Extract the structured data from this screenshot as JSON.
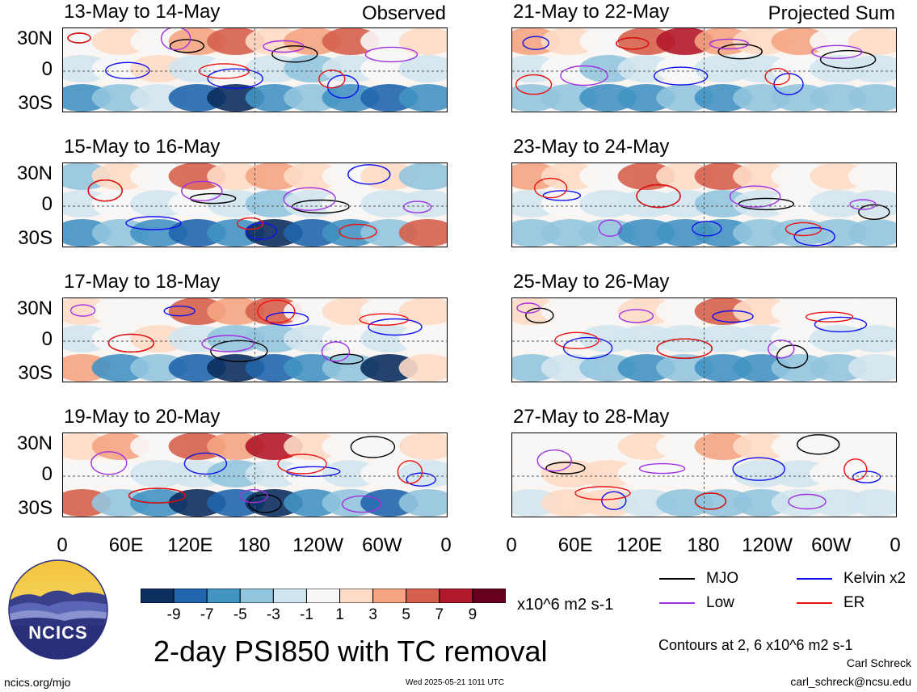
{
  "chart_data": {
    "type": "heatmap",
    "title": "2-day PSI850 with TC removal",
    "variable": "PSI850",
    "units": "x10^6 m2 s-1",
    "xlim": [
      0,
      360
    ],
    "ylim": [
      -40,
      40
    ],
    "x_ticks": [
      "0",
      "60E",
      "120E",
      "180",
      "120W",
      "60W",
      "0"
    ],
    "y_ticks": [
      "30N",
      "0",
      "30S"
    ],
    "colorbar": {
      "labels": [
        "-9",
        "-7",
        "-5",
        "-3",
        "-1",
        "1",
        "3",
        "5",
        "7",
        "9"
      ],
      "colors": [
        "#0b2f5e",
        "#2166ac",
        "#4393c3",
        "#92c5de",
        "#d1e5f0",
        "#f7f7f7",
        "#fddbc7",
        "#f4a582",
        "#d6604d",
        "#b2182b",
        "#67001f"
      ]
    },
    "contour_levels_note": "Contours at 2, 6 x10^6 m2 s-1",
    "contour_legend": [
      {
        "name": "MJO",
        "color": "#000000"
      },
      {
        "name": "Kelvin x2",
        "color": "#1010ee"
      },
      {
        "name": "Low",
        "color": "#a030e0"
      },
      {
        "name": "ER",
        "color": "#ee1010"
      }
    ],
    "panels": [
      {
        "title": "13-May to 14-May",
        "corner": "Observed",
        "anomaly_pattern": [
          [
            1,
            3,
            1,
            5,
            7,
            3,
            5,
            7,
            1,
            3
          ],
          [
            -1,
            1,
            3,
            -1,
            1,
            -1,
            -3,
            -1,
            1,
            -1
          ],
          [
            -5,
            -3,
            -1,
            -7,
            -9,
            -5,
            -3,
            -5,
            -7,
            -5
          ]
        ]
      },
      {
        "title": "15-May to 16-May",
        "corner": "",
        "anomaly_pattern": [
          [
            -3,
            3,
            1,
            7,
            3,
            5,
            3,
            1,
            3,
            -3
          ],
          [
            -1,
            1,
            -1,
            1,
            -1,
            -3,
            -1,
            1,
            -1,
            -1
          ],
          [
            -5,
            -3,
            -5,
            -7,
            -5,
            -9,
            -7,
            -5,
            -3,
            7
          ]
        ]
      },
      {
        "title": "17-May to 18-May",
        "corner": "",
        "anomaly_pattern": [
          [
            3,
            1,
            1,
            7,
            5,
            7,
            1,
            3,
            1,
            3
          ],
          [
            -1,
            1,
            3,
            -1,
            -3,
            -3,
            -1,
            1,
            -1,
            1
          ],
          [
            5,
            -5,
            -3,
            -7,
            -9,
            -7,
            -5,
            -3,
            -9,
            3
          ]
        ]
      },
      {
        "title": "19-May to 20-May",
        "corner": "",
        "anomaly_pattern": [
          [
            3,
            5,
            1,
            7,
            5,
            9,
            3,
            1,
            1,
            3
          ],
          [
            1,
            1,
            -1,
            -1,
            -3,
            -1,
            1,
            -1,
            1,
            -1
          ],
          [
            7,
            -3,
            -5,
            -9,
            -7,
            -9,
            -5,
            -3,
            -7,
            -3
          ]
        ]
      },
      {
        "title": "21-May to 22-May",
        "corner": "Projected Sum",
        "anomaly_pattern": [
          [
            5,
            3,
            1,
            7,
            9,
            5,
            3,
            5,
            1,
            3
          ],
          [
            -1,
            1,
            -3,
            -1,
            1,
            -1,
            -1,
            1,
            -1,
            -1
          ],
          [
            -3,
            -3,
            -5,
            -5,
            -3,
            -5,
            -3,
            -3,
            -3,
            -3
          ]
        ]
      },
      {
        "title": "23-May to 24-May",
        "corner": "",
        "anomaly_pattern": [
          [
            5,
            3,
            1,
            7,
            3,
            7,
            3,
            1,
            3,
            1
          ],
          [
            -1,
            1,
            -1,
            -1,
            -1,
            -3,
            -1,
            1,
            -1,
            -1
          ],
          [
            -3,
            -3,
            -3,
            -5,
            -5,
            -5,
            -3,
            -3,
            -3,
            -3
          ]
        ]
      },
      {
        "title": "25-May to 26-May",
        "corner": "",
        "anomaly_pattern": [
          [
            3,
            1,
            1,
            3,
            1,
            7,
            3,
            1,
            1,
            1
          ],
          [
            1,
            1,
            -1,
            -1,
            -1,
            -1,
            -1,
            1,
            -1,
            -1
          ],
          [
            -3,
            -1,
            -3,
            -5,
            -3,
            -5,
            -5,
            -3,
            -3,
            -1
          ]
        ]
      },
      {
        "title": "27-May to 28-May",
        "corner": "",
        "anomaly_pattern": [
          [
            1,
            1,
            1,
            3,
            1,
            5,
            3,
            1,
            1,
            1
          ],
          [
            1,
            3,
            3,
            1,
            1,
            1,
            -1,
            -1,
            1,
            1
          ],
          [
            -1,
            3,
            3,
            -1,
            -3,
            -3,
            -3,
            -1,
            -1,
            -1
          ]
        ]
      }
    ]
  },
  "branding": {
    "logo_text": "NCICS",
    "site": "ncics.org/mjo",
    "timestamp": "Wed 2025-05-21 1011 UTC",
    "author": "Carl Schreck",
    "email": "carl_schreck@ncsu.edu"
  }
}
